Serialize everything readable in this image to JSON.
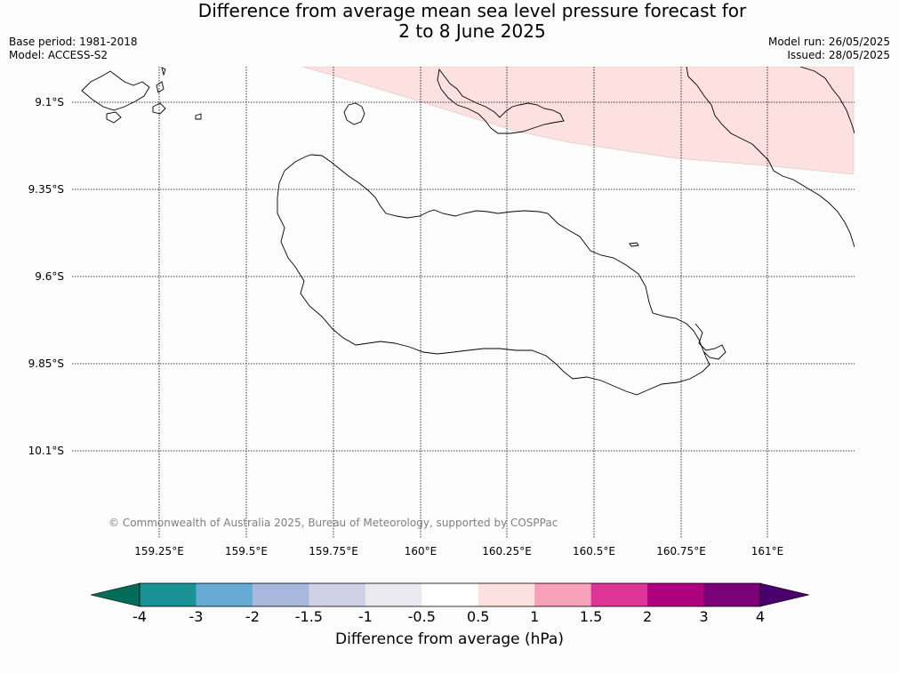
{
  "title_line1": "Difference from average mean sea level pressure forecast for",
  "title_line2": "2 to 8 June 2025",
  "base_period": "Base period: 1981-2018",
  "model": "Model: ACCESS-S2",
  "model_run": "Model run: 26/05/2025",
  "issued": "Issued: 28/05/2025",
  "copyright": "© Commonwealth of Australia 2025, Bureau of Meteorology, supported by COSPPac",
  "lat_labels": [
    "9.1°S",
    "9.35°S",
    "9.6°S",
    "9.85°S",
    "10.1°S"
  ],
  "lon_labels": [
    "159.25°E",
    "159.5°E",
    "159.75°E",
    "160°E",
    "160.25°E",
    "160.5°E",
    "160.75°E",
    "161°E"
  ],
  "colorbar": {
    "title": "Difference from average (hPa)",
    "tick_labels": [
      "-4",
      "-3",
      "-2",
      "-1.5",
      "-1",
      "-0.5",
      "0.5",
      "1",
      "1.5",
      "2",
      "3",
      "4"
    ],
    "colors": [
      "#1a9295",
      "#66abd4",
      "#a7b8dc",
      "#d0d1e7",
      "#eae9ef",
      "#ffffff",
      "#fde0e0",
      "#f7a0ba",
      "#dd3497",
      "#ae017e",
      "#7a0177"
    ],
    "under_color": "#016c59",
    "over_color": "#49006a"
  },
  "shaded_region_color": "#fde0e0"
}
